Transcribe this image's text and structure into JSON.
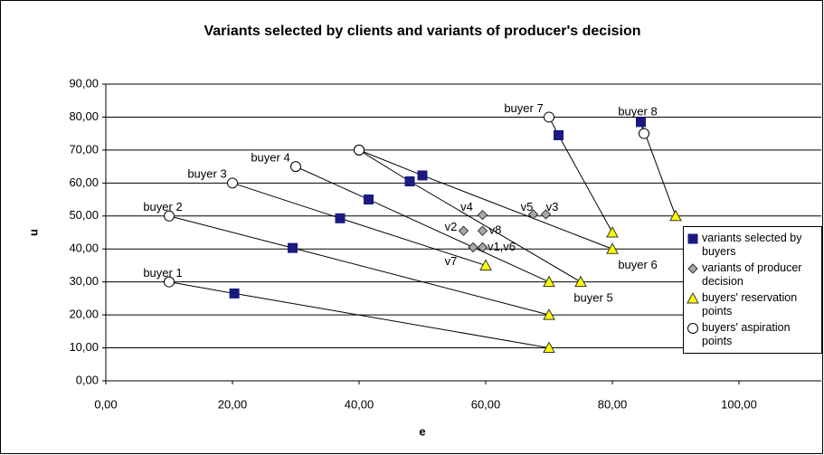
{
  "chart_data": {
    "type": "scatter",
    "title": "Variants selected by clients  and variants of producer's decision",
    "x_label": "e",
    "y_label": "u",
    "xlim": [
      0,
      113
    ],
    "ylim": [
      0,
      90
    ],
    "xticks": [
      {
        "value": 0,
        "label": "0,00"
      },
      {
        "value": 20,
        "label": "20,00"
      },
      {
        "value": 40,
        "label": "40,00"
      },
      {
        "value": 60,
        "label": "60,00"
      },
      {
        "value": 80,
        "label": "80,00"
      },
      {
        "value": 100,
        "label": "100,00"
      }
    ],
    "yticks": [
      {
        "value": 0,
        "label": "0,00"
      },
      {
        "value": 10,
        "label": "10,00"
      },
      {
        "value": 20,
        "label": "20,00"
      },
      {
        "value": 30,
        "label": "30,00"
      },
      {
        "value": 40,
        "label": "40,00"
      },
      {
        "value": 50,
        "label": "50,00"
      },
      {
        "value": 60,
        "label": "60,00"
      },
      {
        "value": 70,
        "label": "70,00"
      },
      {
        "value": 80,
        "label": "80,00"
      },
      {
        "value": 90,
        "label": "90,00"
      }
    ],
    "grid": true,
    "series": [
      {
        "name": "variants selected by buyers",
        "marker": "square",
        "color": "#1a1a80",
        "x": [
          20.3,
          29.5,
          37,
          41.5,
          48,
          50,
          71.5,
          84.5
        ],
        "values": [
          26.5,
          40.3,
          49.3,
          55,
          60.5,
          62.3,
          74.5,
          78.5
        ]
      },
      {
        "name": "variants of producer decision",
        "marker": "diamond",
        "color": "#a6a6a6",
        "x": [
          59.5,
          56.5,
          69.5,
          59.5,
          67.5,
          59.5,
          58,
          59.5
        ],
        "values": [
          40.5,
          45.5,
          50.5,
          50.3,
          50.5,
          40.5,
          40.5,
          45.5
        ]
      },
      {
        "name": "buyers' reservation points",
        "marker": "triangle",
        "color": "#ffff00",
        "x": [
          70,
          70,
          60,
          70,
          75,
          80,
          80,
          90
        ],
        "values": [
          10,
          20,
          35,
          30,
          30,
          40,
          45,
          50
        ]
      },
      {
        "name": "buyers' aspiration points",
        "marker": "circle",
        "color": "#ffffff",
        "x": [
          10,
          10,
          20,
          30,
          40,
          40,
          70,
          85
        ],
        "values": [
          30,
          50,
          60,
          65,
          70,
          70,
          80,
          75
        ]
      }
    ],
    "annotations": [
      {
        "text": "buyer 1",
        "x": 9,
        "y": 32.5
      },
      {
        "text": "buyer 2",
        "x": 9,
        "y": 52.5
      },
      {
        "text": "buyer 3",
        "x": 16,
        "y": 62.5
      },
      {
        "text": "buyer 4",
        "x": 26,
        "y": 67.5
      },
      {
        "text": "buyer 5",
        "x": 77,
        "y": 25
      },
      {
        "text": "buyer 6",
        "x": 84,
        "y": 35
      },
      {
        "text": "buyer 7",
        "x": 66,
        "y": 82.5
      },
      {
        "text": "buyer 8",
        "x": 84,
        "y": 81.5
      },
      {
        "text": "v4",
        "x": 57,
        "y": 52.5
      },
      {
        "text": "v5",
        "x": 66.5,
        "y": 52.5
      },
      {
        "text": "v3",
        "x": 70.5,
        "y": 52.5
      },
      {
        "text": "v2",
        "x": 54.5,
        "y": 46.5
      },
      {
        "text": "v8",
        "x": 61.5,
        "y": 45.5
      },
      {
        "text": "v1,v6",
        "x": 62.5,
        "y": 40.5
      },
      {
        "text": "v7",
        "x": 54.5,
        "y": 36
      }
    ]
  }
}
